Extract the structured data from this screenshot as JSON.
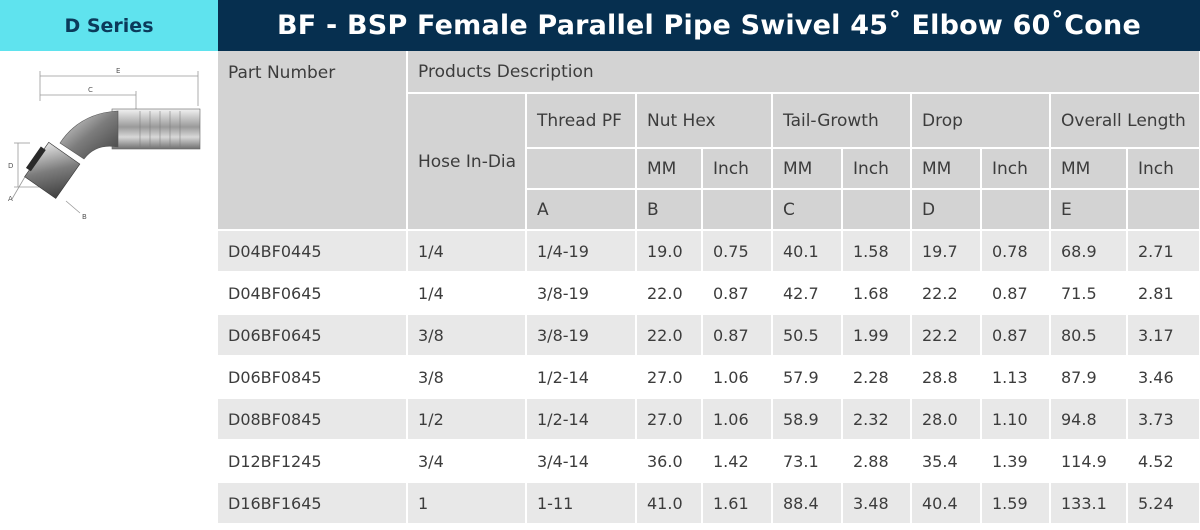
{
  "header": {
    "series_tab": "D Series",
    "title": "BF - BSP Female Parallel Pipe Swivel 45˚ Elbow 60˚Cone"
  },
  "diagram": {
    "labels": [
      "E",
      "C",
      "D",
      "A",
      "B"
    ]
  },
  "table": {
    "head": {
      "part_number": "Part Number",
      "products_description": "Products Description",
      "hose_in_dia": "Hose In-Dia",
      "thread_pf": "Thread PF",
      "nut_hex": "Nut Hex",
      "tail_growth": "Tail-Growth",
      "drop": "Drop",
      "overall_length": "Overall Length",
      "mm": "MM",
      "inch": "Inch",
      "letter_a": "A",
      "letter_b": "B",
      "letter_c": "C",
      "letter_d": "D",
      "letter_e": "E"
    },
    "rows": [
      [
        "D04BF0445",
        "1/4",
        "1/4-19",
        "19.0",
        "0.75",
        "40.1",
        "1.58",
        "19.7",
        "0.78",
        "68.9",
        "2.71"
      ],
      [
        "D04BF0645",
        "1/4",
        "3/8-19",
        "22.0",
        "0.87",
        "42.7",
        "1.68",
        "22.2",
        "0.87",
        "71.5",
        "2.81"
      ],
      [
        "D06BF0645",
        "3/8",
        "3/8-19",
        "22.0",
        "0.87",
        "50.5",
        "1.99",
        "22.2",
        "0.87",
        "80.5",
        "3.17"
      ],
      [
        "D06BF0845",
        "3/8",
        "1/2-14",
        "27.0",
        "1.06",
        "57.9",
        "2.28",
        "28.8",
        "1.13",
        "87.9",
        "3.46"
      ],
      [
        "D08BF0845",
        "1/2",
        "1/2-14",
        "27.0",
        "1.06",
        "58.9",
        "2.32",
        "28.0",
        "1.10",
        "94.8",
        "3.73"
      ],
      [
        "D12BF1245",
        "3/4",
        "3/4-14",
        "36.0",
        "1.42",
        "73.1",
        "2.88",
        "35.4",
        "1.39",
        "114.9",
        "4.52"
      ],
      [
        "D16BF1645",
        "1",
        "1-11",
        "41.0",
        "1.61",
        "88.4",
        "3.48",
        "40.4",
        "1.59",
        "133.1",
        "5.24"
      ]
    ]
  }
}
